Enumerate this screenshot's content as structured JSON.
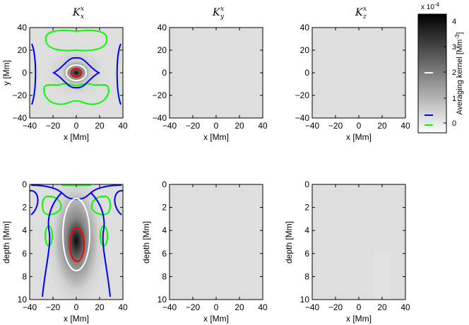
{
  "figure": {
    "colorbar": {
      "exponent_base": "x 10",
      "exponent_power": "-4",
      "label": "Averaging kernel [Mm",
      "label_power": "-3",
      "label_close": "]",
      "ticks": [
        "4",
        "3",
        "2",
        "1",
        "0"
      ],
      "colormap": "gray (white → black)",
      "contour_levels": [
        {
          "color": "#ffffff",
          "level": 1.92
        },
        {
          "color": "#0000ff",
          "level": 0.29
        },
        {
          "color": "#00ff00",
          "level": 0.05
        }
      ]
    },
    "colors": {
      "red_contour": "#ff0000",
      "white_contour": "#ffffff",
      "blue_contour": "#0000ff",
      "green_contour": "#00ff00"
    }
  },
  "chart_data": [
    {
      "type": "heatmap",
      "title_main": "K",
      "title_sub": "x",
      "title_sup": "x",
      "xlabel": "x [Mm]",
      "ylabel": "y [Mm]",
      "xlim": [
        -40,
        40
      ],
      "ylim": [
        -40,
        40
      ],
      "xticks": [
        "−40",
        "−20",
        "0",
        "20",
        "40"
      ],
      "yticks": [
        "40",
        "20",
        "0",
        "−20",
        "−40"
      ],
      "peak": {
        "x": 0,
        "y": 0,
        "value": 0.0004
      },
      "contours": [
        "red",
        "white",
        "blue",
        "green"
      ]
    },
    {
      "type": "heatmap",
      "title_main": "K",
      "title_sub": "y",
      "title_sup": "x",
      "xlabel": "x [Mm]",
      "ylabel": "",
      "xlim": [
        -40,
        40
      ],
      "ylim": [
        -40,
        40
      ],
      "xticks": [
        "−40",
        "−20",
        "0",
        "20",
        "40"
      ],
      "yticks": [
        "40",
        "20",
        "0",
        "−20",
        "−40"
      ],
      "peak": {
        "x": 0,
        "y": 0,
        "value": 1e-05
      },
      "contours": []
    },
    {
      "type": "heatmap",
      "title_main": "K",
      "title_sub": "z",
      "title_sup": "x",
      "xlabel": "x [Mm]",
      "ylabel": "",
      "xlim": [
        -40,
        40
      ],
      "ylim": [
        -40,
        40
      ],
      "xticks": [
        "−40",
        "−20",
        "0",
        "20",
        "40"
      ],
      "yticks": [
        "40",
        "20",
        "0",
        "−20",
        "−40"
      ],
      "peak": {
        "x": 0,
        "y": 0,
        "value": 1e-05
      },
      "contours": []
    },
    {
      "type": "heatmap",
      "title_main": "",
      "title_sub": "",
      "title_sup": "",
      "xlabel": "x [Mm]",
      "ylabel": "depth [Mm]",
      "xlim": [
        -40,
        40
      ],
      "ylim": [
        0,
        10
      ],
      "xticks": [
        "−40",
        "−20",
        "0",
        "20",
        "40"
      ],
      "yticks": [
        "0",
        "2",
        "4",
        "6",
        "8",
        "10"
      ],
      "peak": {
        "x": 0,
        "depth": 5,
        "value": 0.0004
      },
      "contours": [
        "red",
        "white",
        "blue",
        "green"
      ]
    },
    {
      "type": "heatmap",
      "title_main": "",
      "title_sub": "",
      "title_sup": "",
      "xlabel": "x [Mm]",
      "ylabel": "depth [Mm]",
      "xlim": [
        -40,
        40
      ],
      "ylim": [
        0,
        10
      ],
      "xticks": [
        "−40",
        "−20",
        "0",
        "20",
        "40"
      ],
      "yticks": [
        "0",
        "2",
        "4",
        "6",
        "8",
        "10"
      ],
      "peak": {
        "x": 0,
        "depth": 5,
        "value": 1e-05
      },
      "contours": []
    },
    {
      "type": "heatmap",
      "title_main": "",
      "title_sub": "",
      "title_sup": "",
      "xlabel": "x [Mm]",
      "ylabel": "depth [Mm]",
      "xlim": [
        -40,
        40
      ],
      "ylim": [
        0,
        10
      ],
      "xticks": [
        "−40",
        "−20",
        "0",
        "20",
        "40"
      ],
      "yticks": [
        "0",
        "2",
        "4",
        "6",
        "8",
        "10"
      ],
      "peak": {
        "x": 0,
        "depth": 5,
        "value": 1e-05
      },
      "contours": []
    }
  ]
}
